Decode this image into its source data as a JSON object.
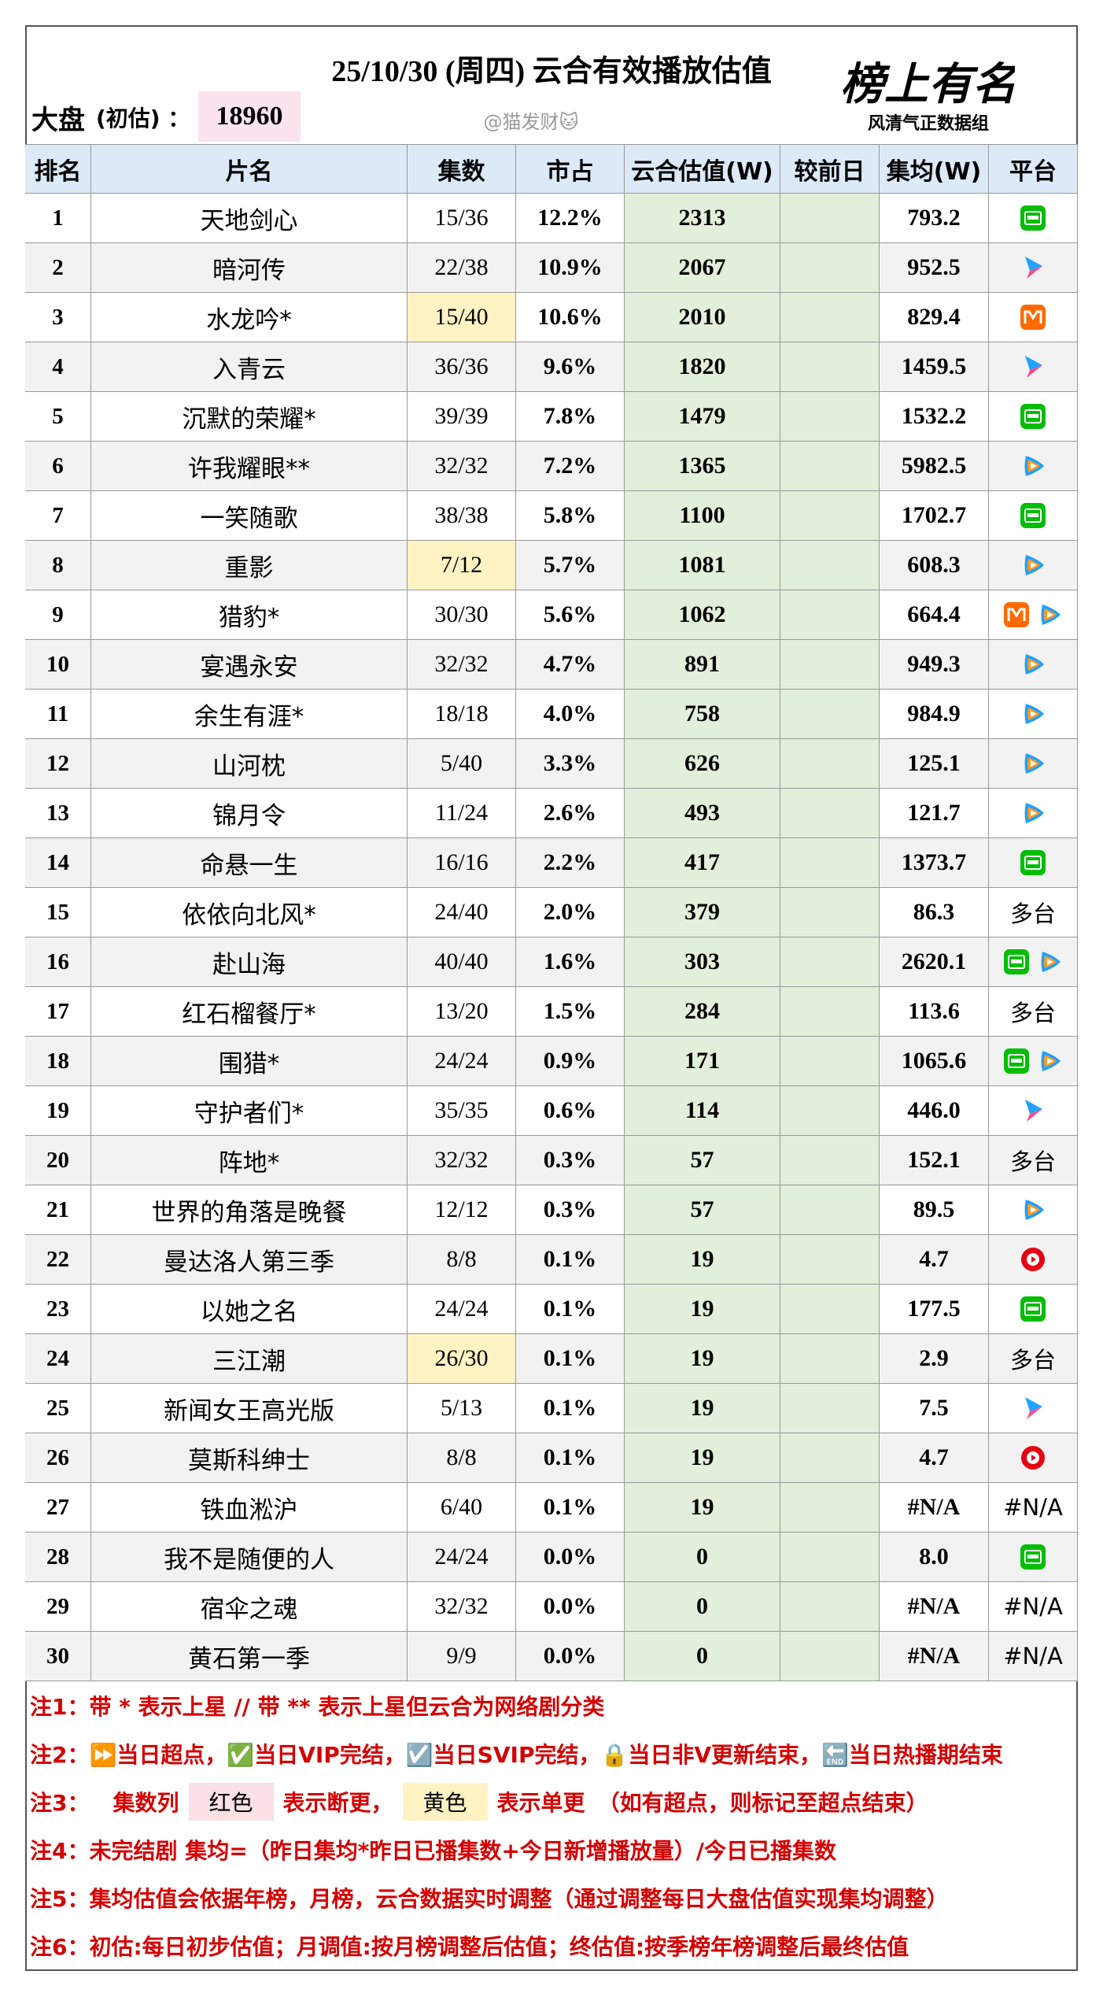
{
  "header": {
    "title": "25/10/30 (周四) 云合有效播放估值",
    "market_label": "大盘",
    "market_note": "(初估) ：",
    "market_value": 18960,
    "watermark": "@猫发财🐱",
    "logo": "榜上有名",
    "logo_sub": "风清气正数据组"
  },
  "table": {
    "columns": [
      "排名",
      "片名",
      "集数",
      "市占",
      "云合估值(W)",
      "较前日",
      "集均(W)",
      "平台"
    ],
    "rows": [
      {
        "rank": 1,
        "title": "天地剑心",
        "episodes": "15/36",
        "share": "12.2%",
        "estimate": 2313,
        "avg": "793.2",
        "platform": null
      },
      {
        "rank": 2,
        "title": "暗河传",
        "episodes": "22/38",
        "share": "10.9%",
        "estimate": 2067,
        "avg": "952.5",
        "platform": null
      },
      {
        "rank": 3,
        "title": "水龙吟*",
        "episodes": "15/40",
        "share": "10.6%",
        "estimate": 2010,
        "avg": "829.4",
        "platform": null
      },
      {
        "rank": 4,
        "title": "入青云",
        "episodes": "36/36",
        "share": "9.6%",
        "estimate": 1820,
        "avg": "1459.5",
        "platform": null
      },
      {
        "rank": 5,
        "title": "沉默的荣耀*",
        "episodes": "39/39",
        "share": "7.8%",
        "estimate": 1479,
        "avg": "1532.2",
        "platform": null
      },
      {
        "rank": 6,
        "title": "许我耀眼**",
        "episodes": "32/32",
        "share": "7.2%",
        "estimate": 1365,
        "avg": "5982.5",
        "platform": null
      },
      {
        "rank": 7,
        "title": "一笑随歌",
        "episodes": "38/38",
        "share": "5.8%",
        "estimate": 1100,
        "avg": "1702.7",
        "platform": null
      },
      {
        "rank": 8,
        "title": "重影",
        "episodes": "7/12",
        "share": "5.7%",
        "estimate": 1081,
        "avg": "608.3",
        "platform": null
      },
      {
        "rank": 9,
        "title": "猎豹*",
        "episodes": "30/30",
        "share": "5.6%",
        "estimate": 1062,
        "avg": "664.4",
        "platform": null
      },
      {
        "rank": 10,
        "title": "宴遇永安",
        "episodes": "32/32",
        "share": "4.7%",
        "estimate": 891,
        "avg": "949.3",
        "platform": null
      },
      {
        "rank": 11,
        "title": "余生有涯*",
        "episodes": "18/18",
        "share": "4.0%",
        "estimate": 758,
        "avg": "984.9",
        "platform": null
      },
      {
        "rank": 12,
        "title": "山河枕",
        "episodes": "5/40",
        "share": "3.3%",
        "estimate": 626,
        "avg": "125.1",
        "platform": null
      },
      {
        "rank": 13,
        "title": "锦月令",
        "episodes": "11/24",
        "share": "2.6%",
        "estimate": 493,
        "avg": "121.7",
        "platform": null
      },
      {
        "rank": 14,
        "title": "命悬一生",
        "episodes": "16/16",
        "share": "2.2%",
        "estimate": 417,
        "avg": "1373.7",
        "platform": null
      },
      {
        "rank": 15,
        "title": "依依向北风*",
        "episodes": "24/40",
        "share": "2.0%",
        "estimate": 379,
        "avg": "86.3",
        "platform": "多台"
      },
      {
        "rank": 16,
        "title": "赴山海",
        "episodes": "40/40",
        "share": "1.6%",
        "estimate": 303,
        "avg": "2620.1",
        "platform": null
      },
      {
        "rank": 17,
        "title": "红石榴餐厅*",
        "episodes": "13/20",
        "share": "1.5%",
        "estimate": 284,
        "avg": "113.6",
        "platform": "多台"
      },
      {
        "rank": 18,
        "title": "围猎*",
        "episodes": "24/24",
        "share": "0.9%",
        "estimate": 171,
        "avg": "1065.6",
        "platform": null
      },
      {
        "rank": 19,
        "title": "守护者们*",
        "episodes": "35/35",
        "share": "0.6%",
        "estimate": 114,
        "avg": "446.0",
        "platform": null
      },
      {
        "rank": 20,
        "title": "阵地*",
        "episodes": "32/32",
        "share": "0.3%",
        "estimate": 57,
        "avg": "152.1",
        "platform": "多台"
      },
      {
        "rank": 21,
        "title": "世界的角落是晚餐",
        "episodes": "12/12",
        "share": "0.3%",
        "estimate": 57,
        "avg": "89.5",
        "platform": null
      },
      {
        "rank": 22,
        "title": "曼达洛人第三季",
        "episodes": "8/8",
        "share": "0.1%",
        "estimate": 19,
        "avg": "4.7",
        "platform": null
      },
      {
        "rank": 23,
        "title": "以她之名",
        "episodes": "24/24",
        "share": "0.1%",
        "estimate": 19,
        "avg": "177.5",
        "platform": null
      },
      {
        "rank": 24,
        "title": "三江潮",
        "episodes": "26/30",
        "share": "0.1%",
        "estimate": 19,
        "avg": "2.9",
        "platform": "多台"
      },
      {
        "rank": 25,
        "title": "新闻女王高光版",
        "episodes": "5/13",
        "share": "0.1%",
        "estimate": 19,
        "avg": "7.5",
        "platform": null
      },
      {
        "rank": 26,
        "title": "莫斯科绅士",
        "episodes": "8/8",
        "share": "0.1%",
        "estimate": 19,
        "avg": "4.7",
        "platform": null
      },
      {
        "rank": 27,
        "title": "铁血淞沪",
        "episodes": "6/40",
        "share": "0.1%",
        "estimate": 19,
        "avg": "#N/A",
        "platform": "#N/A"
      },
      {
        "rank": 28,
        "title": "我不是随便的人",
        "episodes": "24/24",
        "share": "0.0%",
        "estimate": 0,
        "avg": "8.0",
        "platform": null
      },
      {
        "rank": 29,
        "title": "宿伞之魂",
        "episodes": "32/32",
        "share": "0.0%",
        "estimate": 0,
        "avg": "#N/A",
        "platform": "#N/A"
      },
      {
        "rank": 30,
        "title": "黄石第一季",
        "episodes": "9/9",
        "share": "0.0%",
        "estimate": 0,
        "avg": "#N/A",
        "platform": "#N/A"
      }
    ]
  },
  "notes": [
    [
      "注1：",
      "带 * 表示上星 // 带 ** 表示上星但云合为网络剧分类"
    ],
    [
      "注2：",
      "⏩当日超点，✅当日VIP完结，☑️当日SVIP完结，🔒当日非V更新结束，🔚当日热播期结束"
    ],
    [
      "注3：",
      "集数列",
      "红色",
      "表示断更，",
      "黄色",
      "表示单更",
      "（如有超点，则标记至超点结束）"
    ],
    [
      "注4：",
      "未完结剧 集均=（昨日集均*昨日已播集数+今日新增播放量）/今日已播集数"
    ],
    [
      "注5：",
      "集均估值会依据年榜，月榜，云合数据实时调整（通过调整每日大盘估值实现集均调整）"
    ],
    [
      "注6：",
      "初估:每日初步估值；月调值:按月榜调整后估值；终估值:按季榜年榜调整后最终估值"
    ]
  ]
}
